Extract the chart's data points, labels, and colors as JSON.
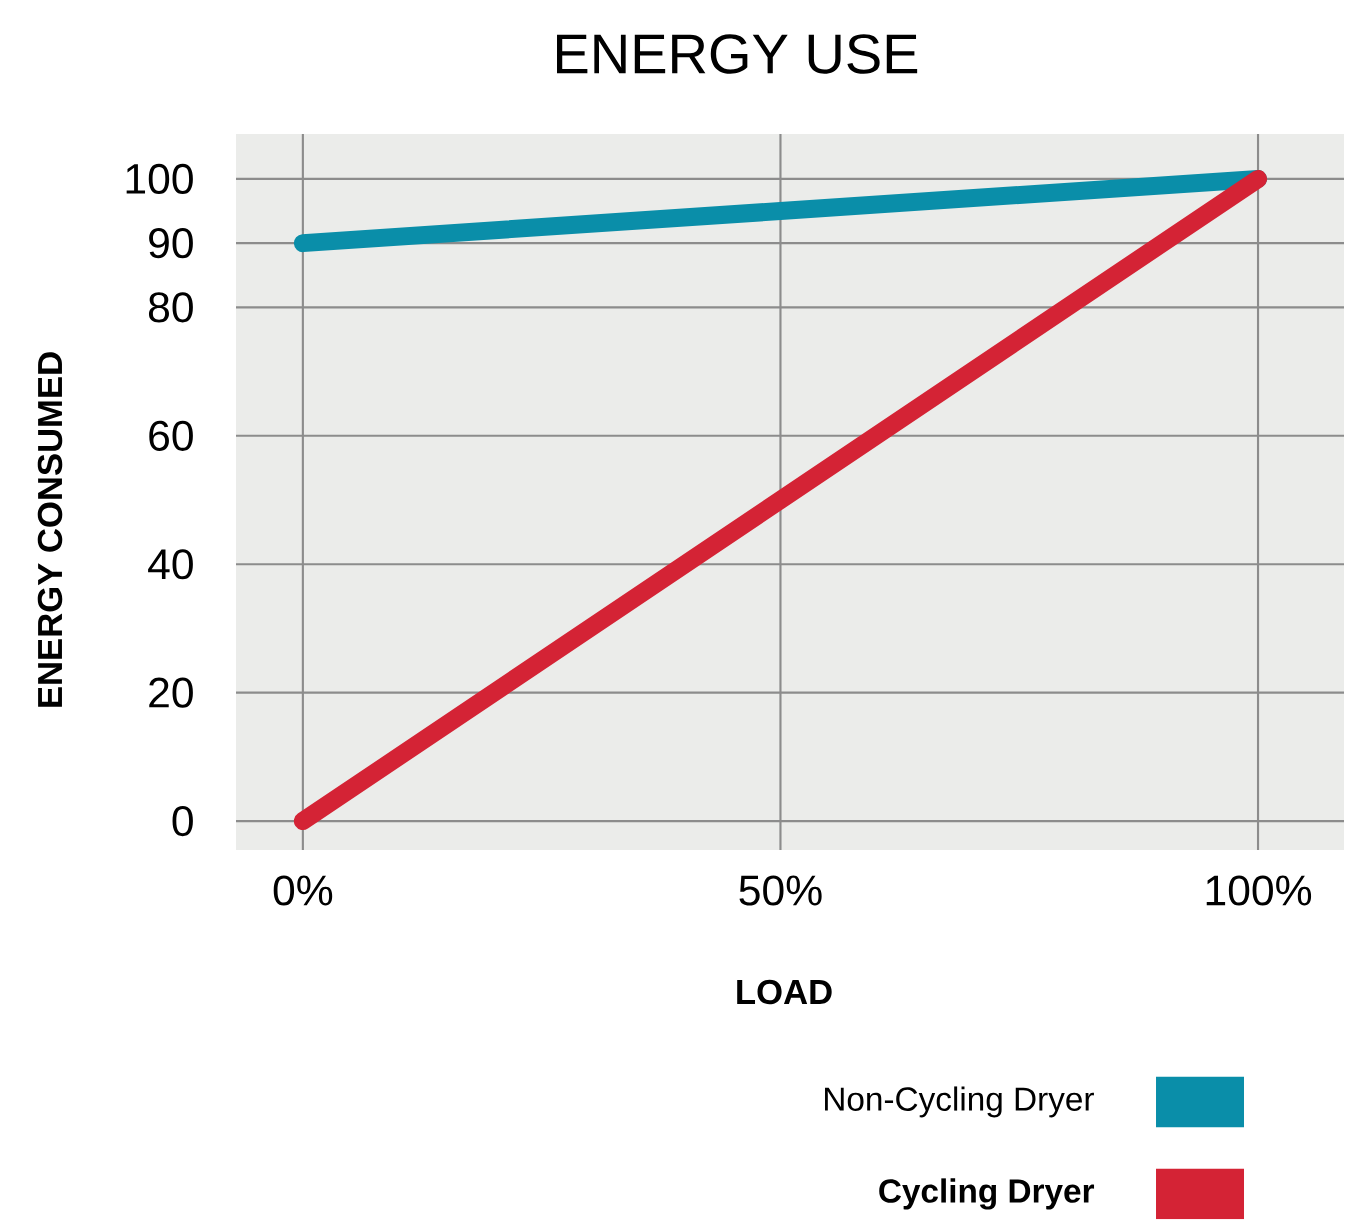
{
  "chart_data": {
    "type": "line",
    "title": "ENERGY USE",
    "xlabel": "LOAD",
    "ylabel": "ENERGY CONSUMED",
    "x": [
      0,
      50,
      100
    ],
    "series": [
      {
        "name": "Non-Cycling Dryer",
        "color": "#0a8ea9",
        "values": [
          90,
          95,
          100
        ]
      },
      {
        "name": "Cycling Dryer",
        "color": "#d42335",
        "values": [
          0,
          50,
          100
        ]
      }
    ],
    "xlim": [
      -7,
      109
    ],
    "ylim": [
      -4.5,
      107
    ],
    "xticks": [
      {
        "value": 0,
        "label": "0%"
      },
      {
        "value": 50,
        "label": "50%"
      },
      {
        "value": 100,
        "label": "100%"
      }
    ],
    "yticks": [
      0,
      20,
      40,
      60,
      80,
      90,
      100
    ],
    "grid": true,
    "legend": "bottom right"
  }
}
